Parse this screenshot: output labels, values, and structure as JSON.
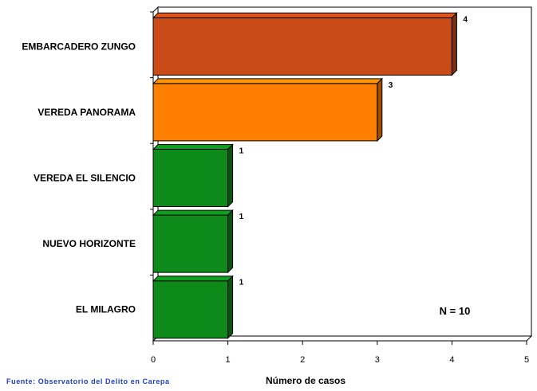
{
  "chart_data": {
    "type": "bar",
    "orientation": "horizontal",
    "categories": [
      "EMBARCADERO ZUNGO",
      "VEREDA PANORAMA",
      "VEREDA EL SILENCIO",
      "NUEVO HORIZONTE",
      "EL MILAGRO"
    ],
    "values": [
      4,
      3,
      1,
      1,
      1
    ],
    "value_labels": [
      "4",
      "3",
      "1",
      "1",
      "1"
    ],
    "colors": [
      "#c84b18",
      "#ff8000",
      "#0d8a1a",
      "#0d8a1a",
      "#0d8a1a"
    ],
    "xlabel": "Número de casos",
    "ylabel": "",
    "xlim": [
      0,
      5
    ],
    "xticks": [
      "0",
      "1",
      "2",
      "3",
      "4",
      "5"
    ],
    "grid": false,
    "style": "3d",
    "annotation": "N = 10"
  },
  "source_text": "Fuente: Observatorio del Delito en Carepa"
}
